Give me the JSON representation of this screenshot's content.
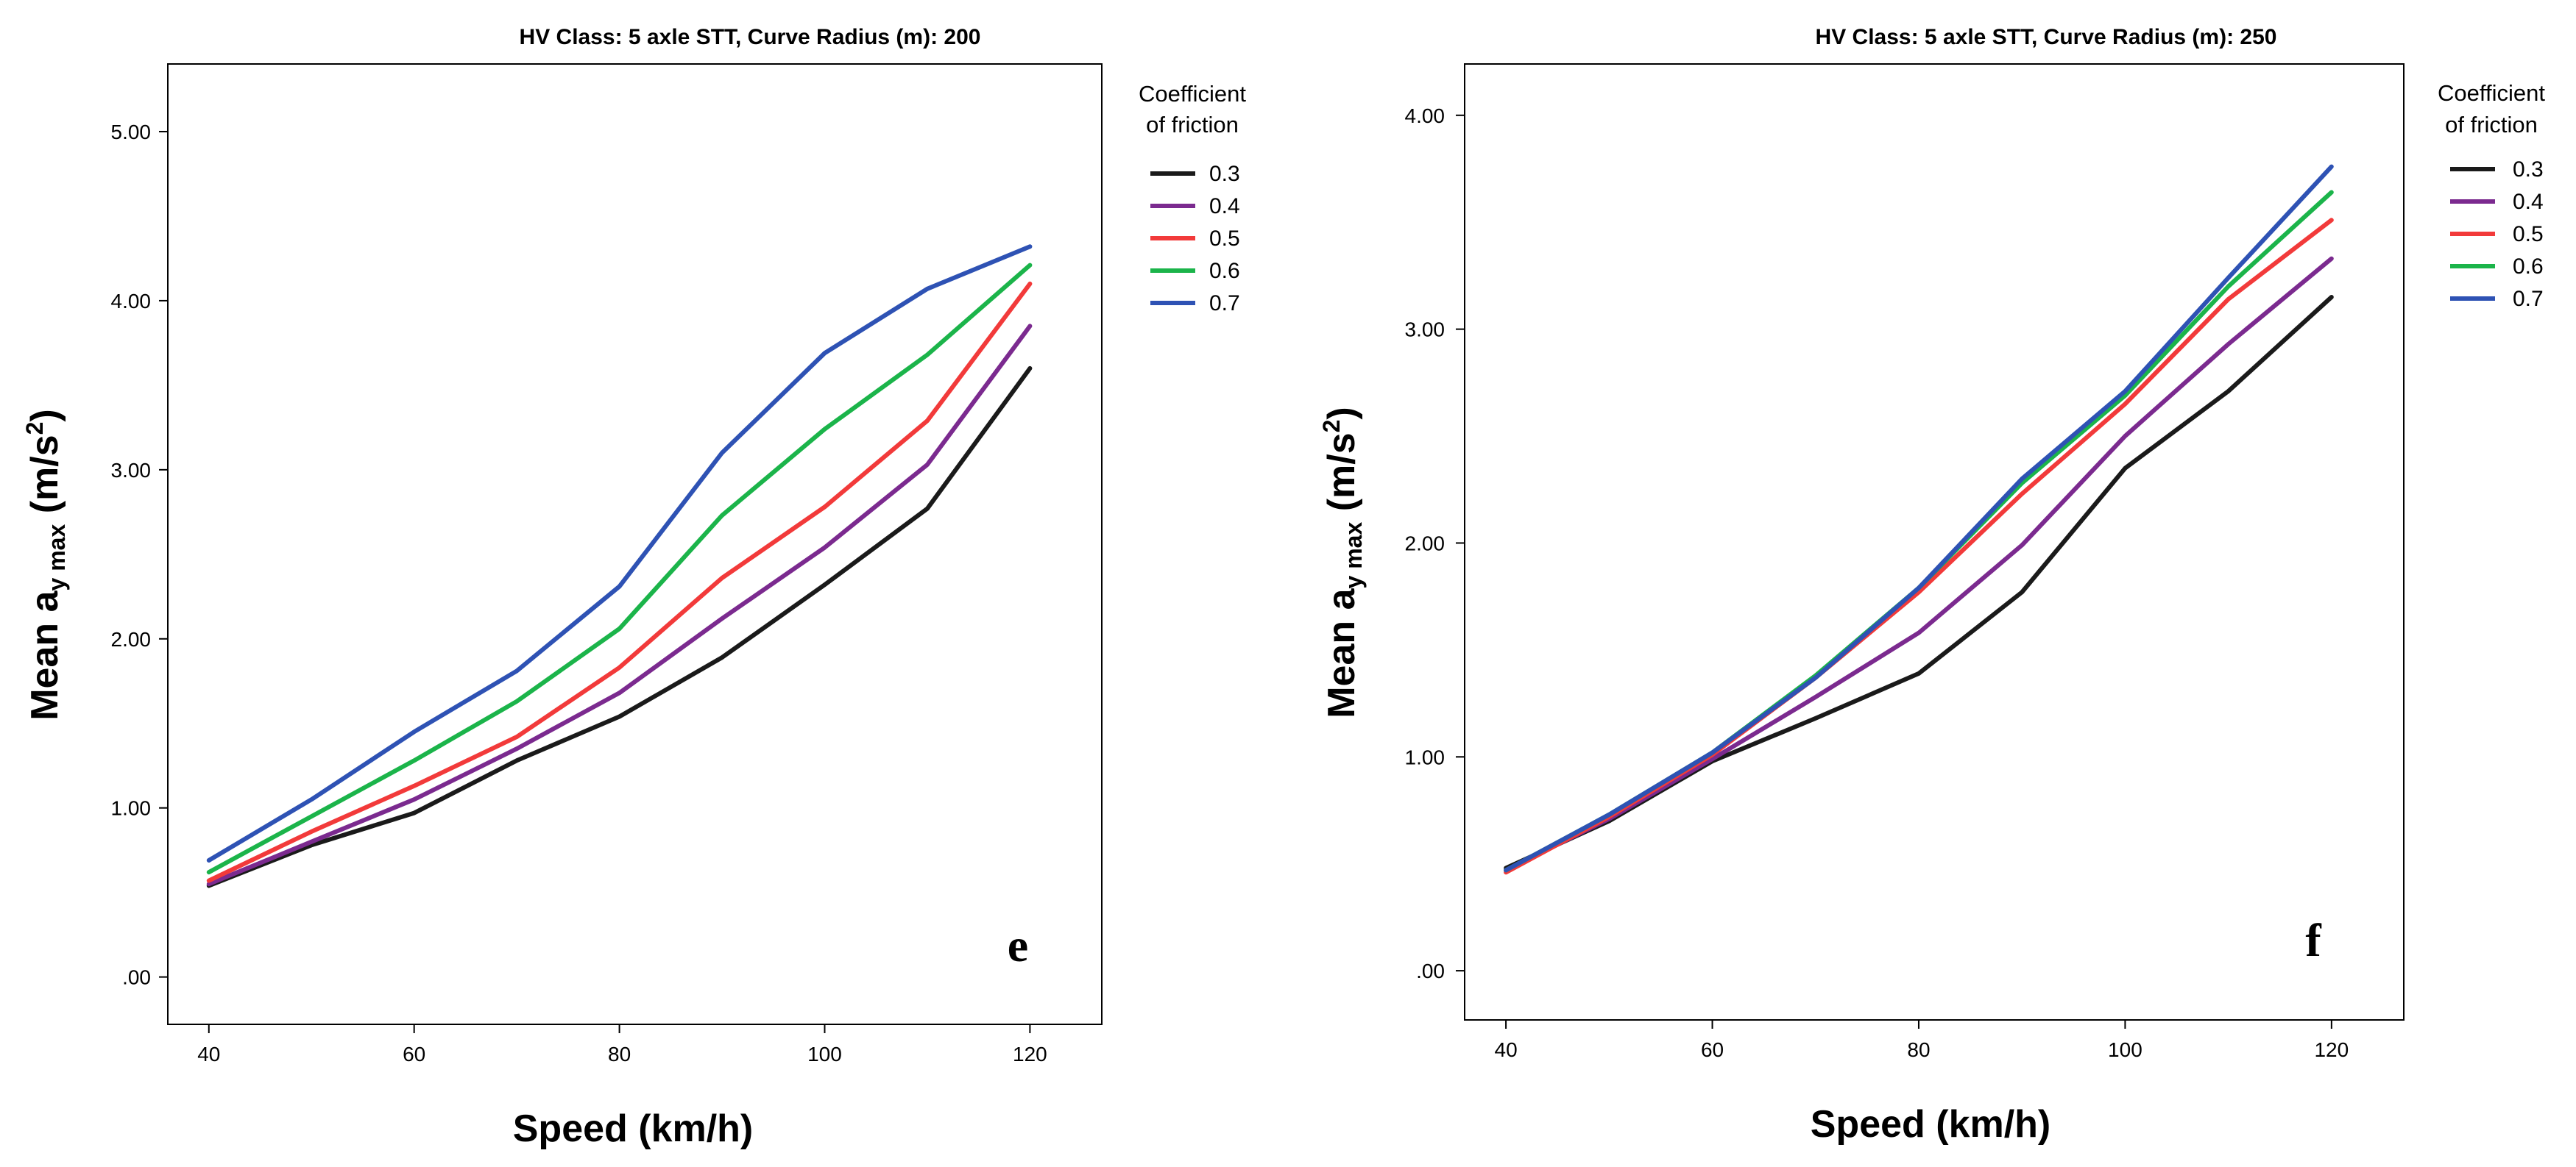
{
  "chart_data": [
    {
      "type": "line",
      "title": "HV Class: 5 axle STT, Curve Radius (m): 200",
      "xlabel": "Speed (km/h)",
      "ylabel_main": "Mean a",
      "ylabel_sub": "y max",
      "ylabel_unit_open": " (m/s",
      "ylabel_unit_sup": "2",
      "ylabel_unit_close": ")",
      "x": [
        40,
        50,
        60,
        70,
        80,
        90,
        100,
        110,
        120
      ],
      "xticks": [
        40,
        60,
        80,
        100,
        120
      ],
      "xtick_labels": [
        "40",
        "60",
        "80",
        "100",
        "120"
      ],
      "xlim": [
        36,
        127
      ],
      "yticks": [
        0,
        1,
        2,
        3,
        4,
        5
      ],
      "ytick_labels": [
        ".00",
        "1.00",
        "2.00",
        "3.00",
        "4.00",
        "5.00"
      ],
      "ylim": [
        -0.28,
        5.4
      ],
      "panel_letter": "e",
      "legend_title_lines": [
        "Coefficient",
        "of friction"
      ],
      "series": [
        {
          "name": "0.3",
          "color": "#1a1a1a",
          "values": [
            0.54,
            0.78,
            0.97,
            1.28,
            1.54,
            1.89,
            2.32,
            2.77,
            3.6
          ]
        },
        {
          "name": "0.4",
          "color": "#7b2a8f",
          "values": [
            0.55,
            0.8,
            1.05,
            1.35,
            1.68,
            2.12,
            2.54,
            3.03,
            3.85
          ]
        },
        {
          "name": "0.5",
          "color": "#f23a3a",
          "values": [
            0.57,
            0.86,
            1.13,
            1.42,
            1.83,
            2.36,
            2.78,
            3.29,
            4.1
          ]
        },
        {
          "name": "0.6",
          "color": "#1bb44a",
          "values": [
            0.62,
            0.95,
            1.28,
            1.63,
            2.06,
            2.73,
            3.24,
            3.68,
            4.21
          ]
        },
        {
          "name": "0.7",
          "color": "#2e52b4",
          "values": [
            0.69,
            1.05,
            1.45,
            1.81,
            2.31,
            3.1,
            3.69,
            4.07,
            4.32
          ]
        }
      ]
    },
    {
      "type": "line",
      "title": "HV Class: 5 axle STT, Curve Radius (m): 250",
      "xlabel": "Speed (km/h)",
      "ylabel_main": "Mean a",
      "ylabel_sub": "y max",
      "ylabel_unit_open": " (m/s",
      "ylabel_unit_sup": "2",
      "ylabel_unit_close": ")",
      "x": [
        40,
        50,
        60,
        70,
        80,
        90,
        100,
        110,
        120
      ],
      "xticks": [
        40,
        60,
        80,
        100,
        120
      ],
      "xtick_labels": [
        "40",
        "60",
        "80",
        "100",
        "120"
      ],
      "xlim": [
        36,
        127
      ],
      "yticks": [
        0,
        1,
        2,
        3,
        4
      ],
      "ytick_labels": [
        ".00",
        "1.00",
        "2.00",
        "3.00",
        "4.00"
      ],
      "ylim": [
        -0.23,
        4.24
      ],
      "panel_letter": "f",
      "legend_title_lines": [
        "Coefficient",
        "of friction"
      ],
      "series": [
        {
          "name": "0.3",
          "color": "#1a1a1a",
          "values": [
            0.48,
            0.7,
            0.98,
            1.18,
            1.39,
            1.77,
            2.35,
            2.71,
            3.15
          ]
        },
        {
          "name": "0.4",
          "color": "#7b2a8f",
          "values": [
            0.47,
            0.71,
            0.99,
            1.28,
            1.58,
            1.99,
            2.5,
            2.93,
            3.33
          ]
        },
        {
          "name": "0.5",
          "color": "#f23a3a",
          "values": [
            0.46,
            0.72,
            1.01,
            1.37,
            1.77,
            2.23,
            2.65,
            3.14,
            3.51
          ]
        },
        {
          "name": "0.6",
          "color": "#1bb44a",
          "values": [
            0.47,
            0.73,
            1.02,
            1.38,
            1.79,
            2.28,
            2.69,
            3.2,
            3.64
          ]
        },
        {
          "name": "0.7",
          "color": "#2e52b4",
          "values": [
            0.47,
            0.73,
            1.02,
            1.37,
            1.79,
            2.3,
            2.71,
            3.24,
            3.76
          ]
        }
      ]
    }
  ]
}
